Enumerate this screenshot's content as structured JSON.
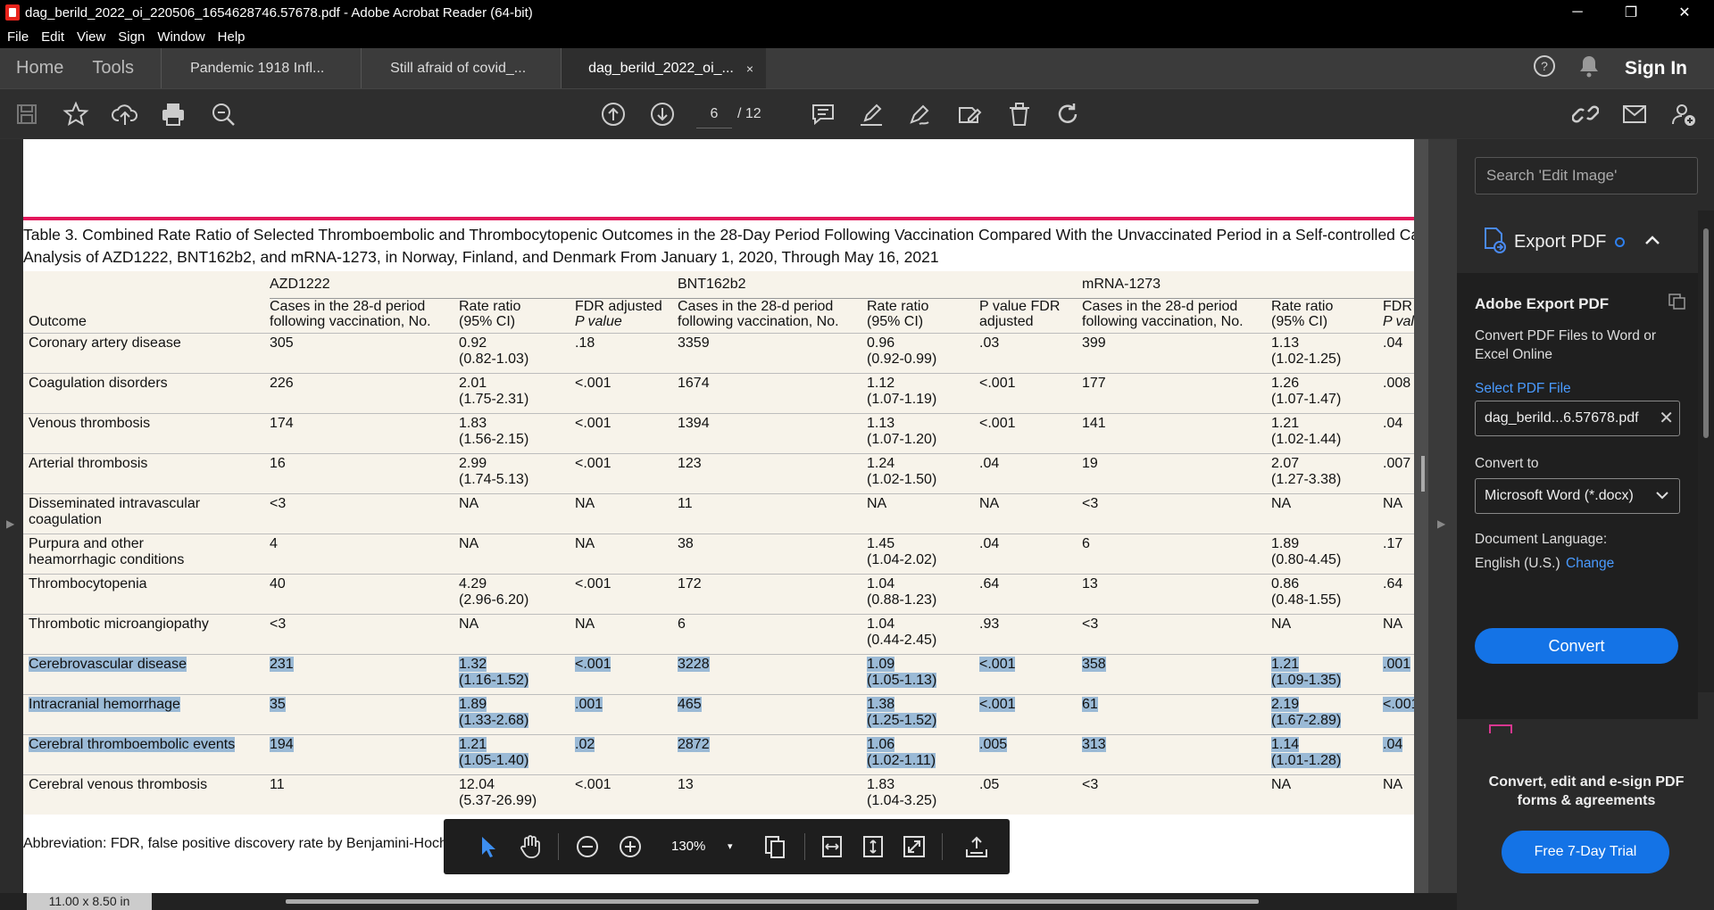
{
  "window": {
    "title": "dag_berild_2022_oi_220506_1654628746.57678.pdf - Adobe Acrobat Reader (64-bit)",
    "minimize": "─",
    "restore": "❐",
    "close": "✕"
  },
  "menu": [
    "File",
    "Edit",
    "View",
    "Sign",
    "Window",
    "Help"
  ],
  "tabs": {
    "home": "Home",
    "tools": "Tools",
    "documents": [
      "Pandemic 1918 Infl...",
      "Still afraid of covid_...",
      "dag_berild_2022_oi_..."
    ],
    "close": "×",
    "sign_in": "Sign In"
  },
  "toolbar": {
    "page_current": "6",
    "page_total": "/ 12"
  },
  "document": {
    "table_title_line1": "Table 3. Combined Rate Ratio of Selected Thromboembolic and Thrombocytopenic Outcomes in the 28-Day Period Following Vaccination Compared With the Unvaccinated Period in a Self-controlled Cas",
    "table_title_line2": "Analysis of AZD1222, BNT162b2, and mRNA-1273, in Norway, Finland, and Denmark From January 1, 2020, Through May 16, 2021",
    "groups": [
      "AZD1222",
      "BNT162b2",
      "mRNA-1273"
    ],
    "headers": {
      "outcome": "Outcome",
      "cases_1": "Cases in the 28-d period",
      "cases_2": "following vaccination, No.",
      "rr_1": "Rate ratio",
      "rr_2": "(95% CI)",
      "fdr_1": "FDR adjusted",
      "fdr_2": "P value",
      "pfdr_1": "P value FDR",
      "pfdr_2": "adjusted",
      "fdr_trunc_1": "FDR a",
      "fdr_trunc_2": "P valu"
    },
    "rows": [
      {
        "outcome": [
          "Coronary artery disease",
          ""
        ],
        "a": [
          "305",
          "0.92",
          "(0.82-1.03)",
          ".18"
        ],
        "b": [
          "3359",
          "0.96",
          "(0.92-0.99)",
          ".03"
        ],
        "m": [
          "399",
          "1.13",
          "(1.02-1.25)",
          ".04"
        ],
        "selected": false
      },
      {
        "outcome": [
          "Coagulation disorders",
          ""
        ],
        "a": [
          "226",
          "2.01",
          "(1.75-2.31)",
          "<.001"
        ],
        "b": [
          "1674",
          "1.12",
          "(1.07-1.19)",
          "<.001"
        ],
        "m": [
          "177",
          "1.26",
          "(1.07-1.47)",
          ".008"
        ],
        "selected": false
      },
      {
        "outcome": [
          "Venous thrombosis",
          ""
        ],
        "a": [
          "174",
          "1.83",
          "(1.56-2.15)",
          "<.001"
        ],
        "b": [
          "1394",
          "1.13",
          "(1.07-1.20)",
          "<.001"
        ],
        "m": [
          "141",
          "1.21",
          "(1.02-1.44)",
          ".04"
        ],
        "selected": false
      },
      {
        "outcome": [
          "Arterial thrombosis",
          ""
        ],
        "a": [
          "16",
          "2.99",
          "(1.74-5.13)",
          "<.001"
        ],
        "b": [
          "123",
          "1.24",
          "(1.02-1.50)",
          ".04"
        ],
        "m": [
          "19",
          "2.07",
          "(1.27-3.38)",
          ".007"
        ],
        "selected": false
      },
      {
        "outcome": [
          "Disseminated intravascular",
          "coagulation"
        ],
        "a": [
          "<3",
          "NA",
          "",
          "NA"
        ],
        "b": [
          "11",
          "NA",
          "",
          "NA"
        ],
        "m": [
          "<3",
          "NA",
          "",
          "NA"
        ],
        "selected": false
      },
      {
        "outcome": [
          "Purpura and other",
          "heamorrhagic conditions"
        ],
        "a": [
          "4",
          "NA",
          "",
          "NA"
        ],
        "b": [
          "38",
          "1.45",
          "(1.04-2.02)",
          ".04"
        ],
        "m": [
          "6",
          "1.89",
          "(0.80-4.45)",
          ".17"
        ],
        "selected": false
      },
      {
        "outcome": [
          "Thrombocytopenia",
          ""
        ],
        "a": [
          "40",
          "4.29",
          "(2.96-6.20)",
          "<.001"
        ],
        "b": [
          "172",
          "1.04",
          "(0.88-1.23)",
          ".64"
        ],
        "m": [
          "13",
          "0.86",
          "(0.48-1.55)",
          ".64"
        ],
        "selected": false
      },
      {
        "outcome": [
          "Thrombotic microangiopathy",
          ""
        ],
        "a": [
          "<3",
          "NA",
          "",
          "NA"
        ],
        "b": [
          "6",
          "1.04",
          "(0.44-2.45)",
          ".93"
        ],
        "m": [
          "<3",
          "NA",
          "",
          "NA"
        ],
        "selected": false
      },
      {
        "outcome": [
          "Cerebrovascular disease",
          ""
        ],
        "a": [
          "231",
          "1.32",
          "(1.16-1.52)",
          "<.001"
        ],
        "b": [
          "3228",
          "1.09",
          "(1.05-1.13)",
          "<.001"
        ],
        "m": [
          "358",
          "1.21",
          "(1.09-1.35)",
          ".001"
        ],
        "selected": true
      },
      {
        "outcome": [
          "Intracranial hemorrhage",
          ""
        ],
        "a": [
          "35",
          "1.89",
          "(1.33-2.68)",
          ".001"
        ],
        "b": [
          "465",
          "1.38",
          "(1.25-1.52)",
          "<.001"
        ],
        "m": [
          "61",
          "2.19",
          "(1.67-2.89)",
          "<.001"
        ],
        "selected": true
      },
      {
        "outcome": [
          "Cerebral thromboembolic events",
          ""
        ],
        "a": [
          "194",
          "1.21",
          "(1.05-1.40)",
          ".02"
        ],
        "b": [
          "2872",
          "1.06",
          "(1.02-1.11)",
          ".005"
        ],
        "m": [
          "313",
          "1.14",
          "(1.01-1.28)",
          ".04"
        ],
        "selected": true
      },
      {
        "outcome": [
          "Cerebral venous thrombosis",
          ""
        ],
        "a": [
          "11",
          "12.04",
          "(5.37-26.99)",
          "<.001"
        ],
        "b": [
          "13",
          "1.83",
          "(1.04-3.25)",
          ".05"
        ],
        "m": [
          "<3",
          "NA",
          "",
          "NA"
        ],
        "selected": false
      }
    ],
    "footnote": "Abbreviation: FDR, false positive discovery rate by Benjamini-Hoch"
  },
  "float_toolbar": {
    "zoom": "130%",
    "caret": "▾"
  },
  "status": {
    "page_size": "11.00 x 8.50 in"
  },
  "right_panel": {
    "search_placeholder": "Search 'Edit Image'",
    "export_title": "Export PDF",
    "heading": "Adobe Export PDF",
    "description": "Convert PDF Files to Word or Excel Online",
    "select_file": "Select PDF File",
    "file_name": "dag_berild...6.57678.pdf",
    "convert_to": "Convert to",
    "format": "Microsoft Word (*.docx)",
    "doc_language_label": "Document Language:",
    "doc_language": "English (U.S.)",
    "change": "Change",
    "convert_button": "Convert",
    "promo_text": "Convert, edit and e-sign PDF forms & agreements",
    "trial_button": "Free 7-Day Trial"
  },
  "colors": {
    "accent": "#1473e6",
    "selection": "#9bbad6",
    "rule": "#e3165b",
    "table_bg": "#f7f3ea"
  }
}
